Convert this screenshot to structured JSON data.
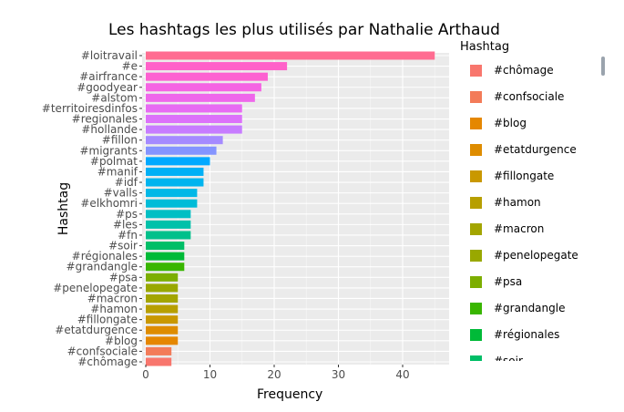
{
  "chart_data": {
    "type": "bar",
    "orientation": "horizontal",
    "title": "Les hashtags les plus utilisés par Nathalie Arthaud",
    "xlabel": "Frequency",
    "ylabel": "Hashtag",
    "xlim": [
      0,
      47
    ],
    "xticks": [
      0,
      10,
      20,
      30,
      40
    ],
    "grid": true,
    "legend_title": "Hashtag",
    "legend_position": "right",
    "bars": [
      {
        "label": "#loitravail",
        "value": 45,
        "color": "#FF6C91"
      },
      {
        "label": "#e",
        "value": 22,
        "color": "#FF61C9"
      },
      {
        "label": "#airfrance",
        "value": 19,
        "color": "#FD61D1"
      },
      {
        "label": "#goodyear",
        "value": 18,
        "color": "#F564E3"
      },
      {
        "label": "#alstom",
        "value": 17,
        "color": "#EF67EB"
      },
      {
        "label": "#territoiresdinfos",
        "value": 15,
        "color": "#E76BF3"
      },
      {
        "label": "#regionales",
        "value": 15,
        "color": "#DC71FA"
      },
      {
        "label": "#hollande",
        "value": 15,
        "color": "#C77CFF"
      },
      {
        "label": "#fillon",
        "value": 12,
        "color": "#A58AFF"
      },
      {
        "label": "#migrants",
        "value": 11,
        "color": "#8494FF"
      },
      {
        "label": "#polmat",
        "value": 10,
        "color": "#00A9FF"
      },
      {
        "label": "#manif",
        "value": 9,
        "color": "#00B0F6"
      },
      {
        "label": "#idf",
        "value": 9,
        "color": "#00B4EF"
      },
      {
        "label": "#valls",
        "value": 8,
        "color": "#00B8E7"
      },
      {
        "label": "#elkhomri",
        "value": 8,
        "color": "#00BCD8"
      },
      {
        "label": "#ps",
        "value": 7,
        "color": "#00BFC4"
      },
      {
        "label": "#les",
        "value": 7,
        "color": "#00C1AA"
      },
      {
        "label": "#fn",
        "value": 7,
        "color": "#00C08B"
      },
      {
        "label": "#soir",
        "value": 6,
        "color": "#00BE67"
      },
      {
        "label": "#régionales",
        "value": 6,
        "color": "#00BA38"
      },
      {
        "label": "#grandangle",
        "value": 6,
        "color": "#39B600"
      },
      {
        "label": "#psa",
        "value": 5,
        "color": "#7CAE00"
      },
      {
        "label": "#penelopegate",
        "value": 5,
        "color": "#99A800"
      },
      {
        "label": "#macron",
        "value": 5,
        "color": "#A3A500"
      },
      {
        "label": "#hamon",
        "value": 5,
        "color": "#B79F00"
      },
      {
        "label": "#fillongate",
        "value": 5,
        "color": "#C99800"
      },
      {
        "label": "#etatdurgence",
        "value": 5,
        "color": "#DE8C00"
      },
      {
        "label": "#blog",
        "value": 5,
        "color": "#E58700"
      },
      {
        "label": "#confsociale",
        "value": 4,
        "color": "#F37B59"
      },
      {
        "label": "#chômage",
        "value": 4,
        "color": "#F8766D"
      }
    ],
    "legend_items": [
      {
        "label": "#chômage",
        "color": "#F8766D"
      },
      {
        "label": "#confsociale",
        "color": "#F37B59"
      },
      {
        "label": "#blog",
        "color": "#E58700"
      },
      {
        "label": "#etatdurgence",
        "color": "#DE8C00"
      },
      {
        "label": "#fillongate",
        "color": "#C99800"
      },
      {
        "label": "#hamon",
        "color": "#B79F00"
      },
      {
        "label": "#macron",
        "color": "#A3A500"
      },
      {
        "label": "#penelopegate",
        "color": "#99A800"
      },
      {
        "label": "#psa",
        "color": "#7CAE00"
      },
      {
        "label": "#grandangle",
        "color": "#39B600"
      },
      {
        "label": "#régionales",
        "color": "#00BA38"
      },
      {
        "label": "#soir",
        "color": "#00BE67"
      }
    ]
  }
}
